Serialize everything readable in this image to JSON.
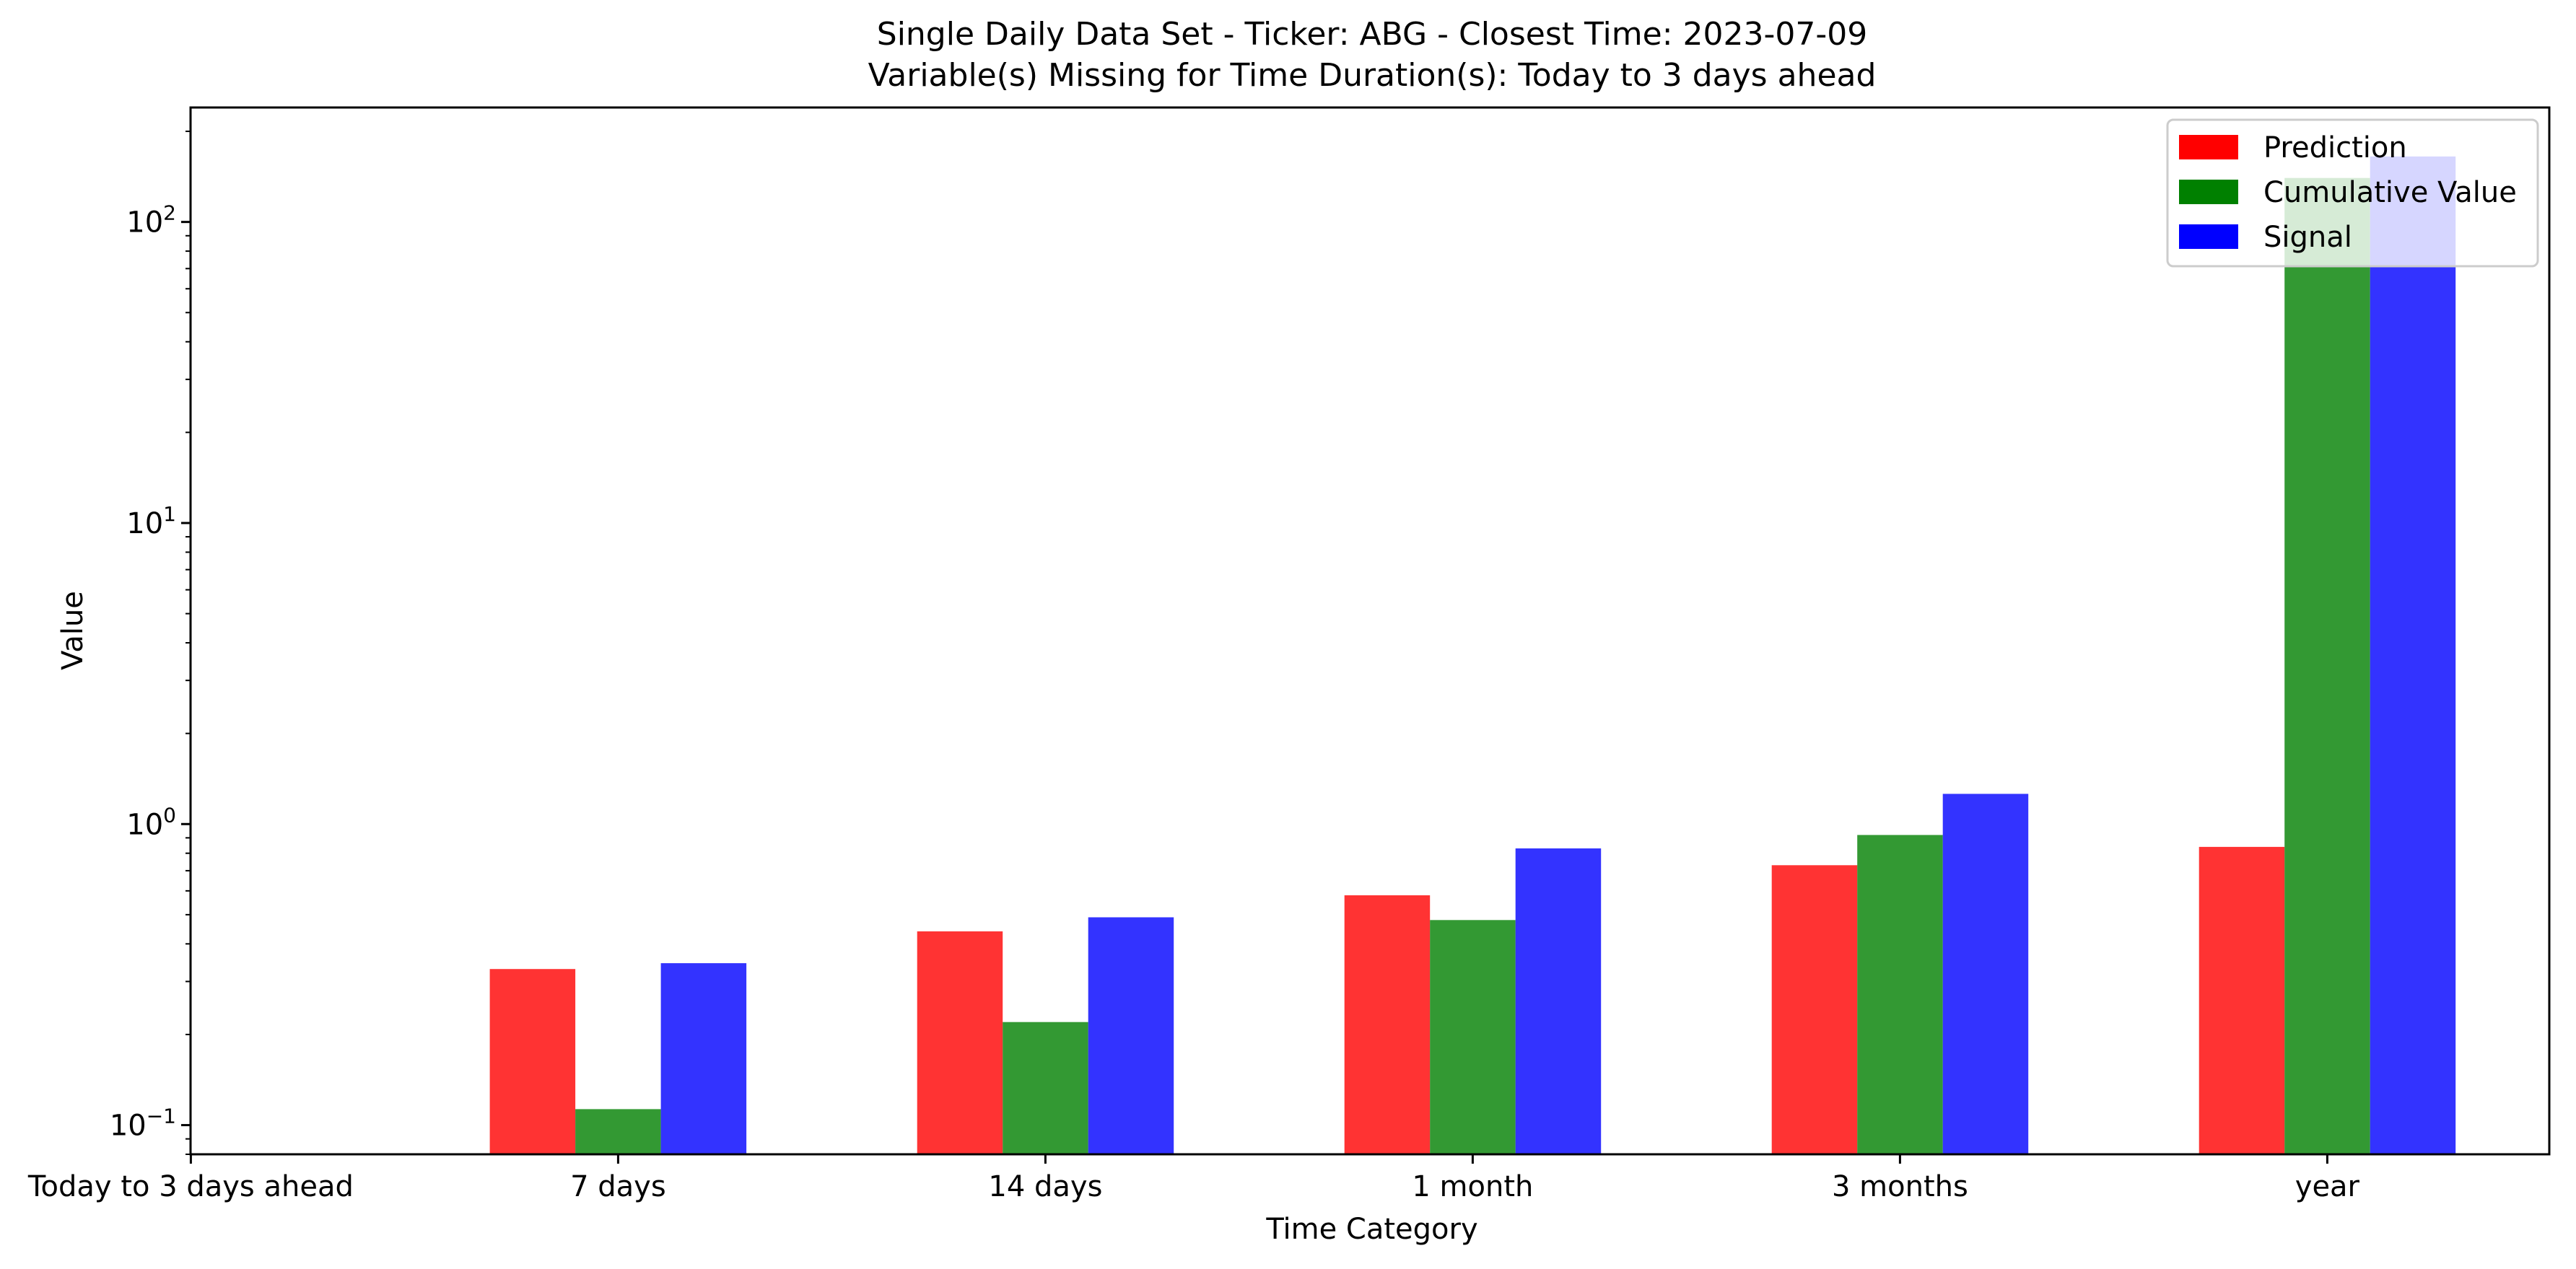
{
  "chart_data": {
    "type": "bar",
    "title": "Single Daily Data Set - Ticker: ABG - Closest Time: 2023-07-09",
    "subtitle": "Variable(s) Missing for Time Duration(s): Today to 3 days ahead",
    "xlabel": "Time Category",
    "ylabel": "Value",
    "yscale": "log",
    "ylim": [
      0.08,
      240
    ],
    "ytick_labels": [
      {
        "value": 0.1,
        "base": "10",
        "exp": "−1"
      },
      {
        "value": 1,
        "base": "10",
        "exp": "0"
      },
      {
        "value": 10,
        "base": "10",
        "exp": "1"
      },
      {
        "value": 100,
        "base": "10",
        "exp": "2"
      }
    ],
    "categories": [
      "Today to 3 days ahead",
      "7 days",
      "14 days",
      "1 month",
      "3 months",
      "year"
    ],
    "series": [
      {
        "name": "Prediction",
        "color": "#ff0000",
        "values": [
          null,
          0.33,
          0.44,
          0.58,
          0.73,
          0.84
        ]
      },
      {
        "name": "Cumulative Value",
        "color": "#008000",
        "values": [
          null,
          0.113,
          0.22,
          0.48,
          0.92,
          140
        ]
      },
      {
        "name": "Signal",
        "color": "#0000ff",
        "values": [
          null,
          0.345,
          0.49,
          0.83,
          1.26,
          165
        ]
      }
    ],
    "bar_alpha": 0.8,
    "legend_position": "top-right",
    "grid": false
  }
}
